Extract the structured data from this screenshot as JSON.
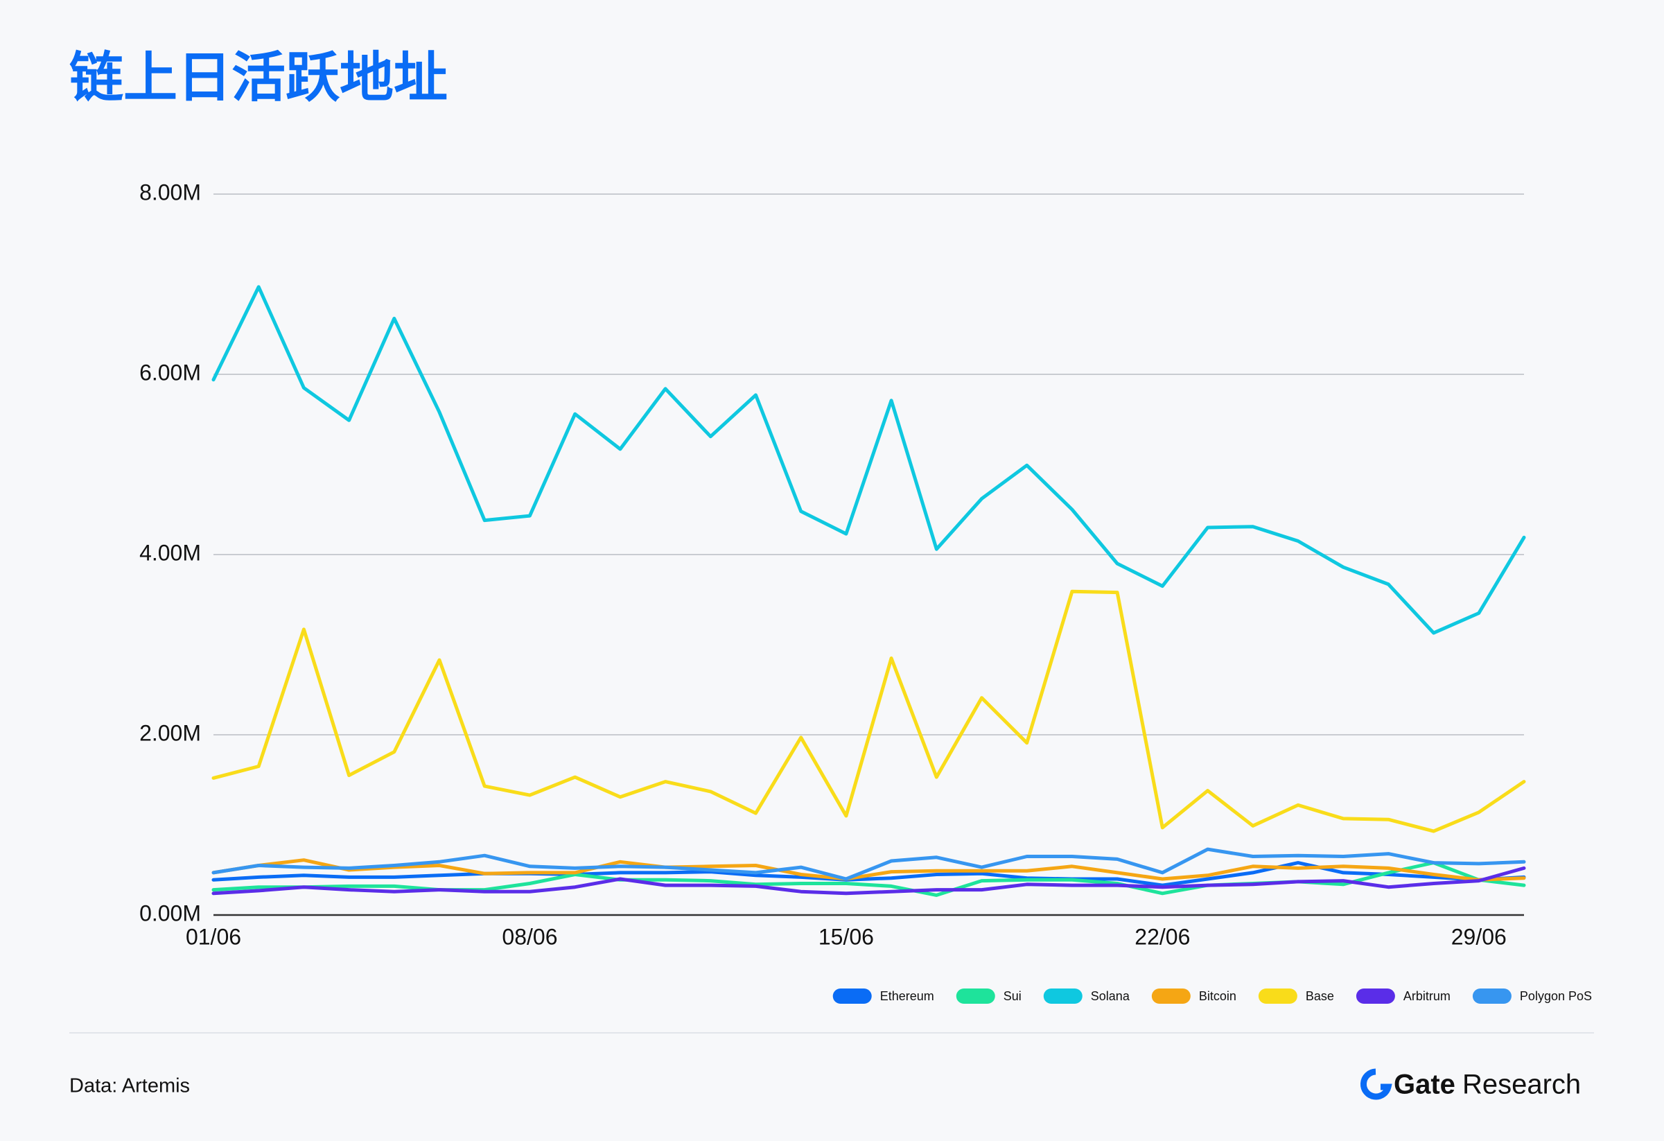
{
  "chart_data": {
    "type": "line",
    "title": "链上日活跃地址",
    "categories": [
      "01/06",
      null,
      null,
      null,
      null,
      null,
      null,
      "08/06",
      null,
      null,
      null,
      null,
      null,
      null,
      "15/06",
      null,
      null,
      null,
      null,
      null,
      null,
      "22/06",
      null,
      null,
      null,
      null,
      null,
      null,
      "29/06",
      null
    ],
    "series": [
      {
        "name": "Ethereum",
        "color": "#0a6cf5",
        "values": [
          0.39,
          0.42,
          0.44,
          0.42,
          0.42,
          0.44,
          0.46,
          0.46,
          0.45,
          0.47,
          0.47,
          0.48,
          0.44,
          0.42,
          0.39,
          0.41,
          0.45,
          0.46,
          0.41,
          0.4,
          0.4,
          0.33,
          0.4,
          0.47,
          0.58,
          0.47,
          0.45,
          0.42,
          0.39,
          0.42
        ]
      },
      {
        "name": "Sui",
        "color": "#1ee39b",
        "values": [
          0.28,
          0.31,
          0.31,
          0.32,
          0.32,
          0.28,
          0.28,
          0.35,
          0.45,
          0.39,
          0.39,
          0.38,
          0.34,
          0.35,
          0.35,
          0.32,
          0.22,
          0.38,
          0.39,
          0.39,
          0.35,
          0.24,
          0.33,
          0.35,
          0.37,
          0.34,
          0.47,
          0.58,
          0.39,
          0.33
        ]
      },
      {
        "name": "Solana",
        "color": "#0fc8e0",
        "values": [
          5.94,
          6.97,
          5.85,
          5.49,
          6.62,
          5.58,
          4.38,
          4.43,
          5.56,
          5.17,
          5.84,
          5.31,
          5.77,
          4.48,
          4.23,
          5.71,
          4.06,
          4.62,
          4.99,
          4.5,
          3.9,
          3.65,
          4.3,
          4.31,
          4.15,
          3.86,
          3.67,
          3.13,
          3.35,
          4.19
        ]
      },
      {
        "name": "Bitcoin",
        "color": "#f5a614",
        "values": [
          0.47,
          0.55,
          0.61,
          0.5,
          0.53,
          0.55,
          0.46,
          0.47,
          0.47,
          0.59,
          0.53,
          0.54,
          0.55,
          0.45,
          0.4,
          0.48,
          0.49,
          0.49,
          0.49,
          0.54,
          0.47,
          0.4,
          0.44,
          0.54,
          0.52,
          0.54,
          0.52,
          0.45,
          0.39,
          0.41
        ]
      },
      {
        "name": "Base",
        "color": "#f9dc1a",
        "values": [
          1.52,
          1.65,
          3.17,
          1.55,
          1.81,
          2.83,
          1.43,
          1.33,
          1.53,
          1.31,
          1.48,
          1.37,
          1.13,
          1.97,
          1.1,
          2.85,
          1.53,
          2.41,
          1.91,
          3.59,
          3.58,
          0.97,
          1.38,
          0.99,
          1.22,
          1.07,
          1.06,
          0.93,
          1.14,
          1.48
        ]
      },
      {
        "name": "Arbitrum",
        "color": "#5a2de8",
        "values": [
          0.24,
          0.27,
          0.31,
          0.28,
          0.26,
          0.28,
          0.26,
          0.26,
          0.31,
          0.4,
          0.33,
          0.33,
          0.32,
          0.26,
          0.24,
          0.26,
          0.28,
          0.28,
          0.34,
          0.33,
          0.33,
          0.31,
          0.33,
          0.34,
          0.37,
          0.38,
          0.31,
          0.35,
          0.38,
          0.52
        ]
      },
      {
        "name": "Polygon PoS",
        "color": "#3796f0",
        "values": [
          0.47,
          0.55,
          0.53,
          0.52,
          0.55,
          0.59,
          0.66,
          0.54,
          0.52,
          0.54,
          0.53,
          0.5,
          0.47,
          0.53,
          0.4,
          0.6,
          0.64,
          0.53,
          0.65,
          0.65,
          0.62,
          0.47,
          0.73,
          0.65,
          0.66,
          0.65,
          0.68,
          0.58,
          0.57,
          0.59
        ]
      }
    ],
    "ylim": [
      0,
      8
    ],
    "yticks": [
      {
        "value": 0,
        "label": "0.00M"
      },
      {
        "value": 2,
        "label": "2.00M"
      },
      {
        "value": 4,
        "label": "4.00M"
      },
      {
        "value": 6,
        "label": "6.00M"
      },
      {
        "value": 8,
        "label": "8.00M"
      }
    ],
    "grid": true,
    "legend": "bottom-right",
    "source": "Data: Artemis",
    "logo": {
      "name": "Gate",
      "text": "Research"
    }
  }
}
